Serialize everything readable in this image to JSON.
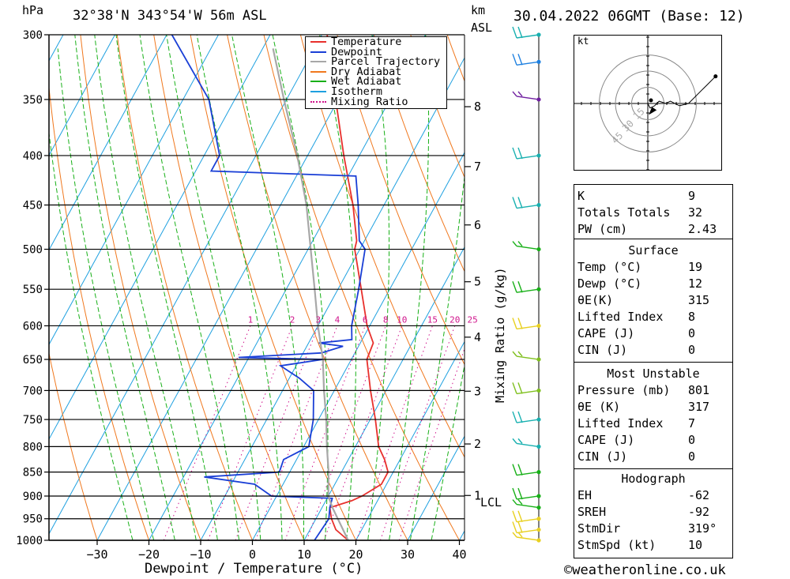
{
  "header": {
    "pressure_unit": "hPa",
    "location": "32°38'N 343°54'W 56m ASL",
    "km_label": "km",
    "asl_label": "ASL",
    "datetime": "30.04.2022 06GMT (Base: 12)"
  },
  "colors": {
    "temperature": "#e8302c",
    "dewpoint": "#1a3fd6",
    "parcel": "#a8a8a8",
    "dry_adiabat": "#f0781e",
    "wet_adiabat": "#18b018",
    "isotherm": "#1ea0e0",
    "mixing_ratio": "#d0148c"
  },
  "chart_data": {
    "type": "line",
    "title": "32°38'N 343°54'W 56m ASL",
    "xlabel": "Dewpoint / Temperature (°C)",
    "ylabel": "hPa",
    "y_scale": "log-pressure",
    "xlim": [
      -40,
      40
    ],
    "ylim": [
      1000,
      300
    ],
    "x_ticks": [
      "-30",
      "-20",
      "-10",
      "0",
      "10",
      "20",
      "30",
      "40"
    ],
    "pressure_ticks": [
      "300",
      "350",
      "400",
      "450",
      "500",
      "550",
      "600",
      "650",
      "700",
      "750",
      "800",
      "850",
      "900",
      "950",
      "1000"
    ],
    "height_ticks_km": [
      "1",
      "2",
      "3",
      "4",
      "5",
      "6",
      "7",
      "8"
    ],
    "lcl_label": "LCL",
    "mixing_ratio_label": "Mixing Ratio (g/kg)",
    "mixing_ratio_values": [
      "1",
      "2",
      "3",
      "4",
      "6",
      "8",
      "10",
      "15",
      "20",
      "25"
    ],
    "legend": [
      "Temperature",
      "Dewpoint",
      "Parcel Trajectory",
      "Dry Adiabat",
      "Wet Adiabat",
      "Isotherm",
      "Mixing Ratio"
    ],
    "legend_position": "top-right",
    "series": [
      {
        "name": "Temperature",
        "points": [
          [
            1000,
            18.5
          ],
          [
            975,
            15
          ],
          [
            950,
            13
          ],
          [
            925,
            11.5
          ],
          [
            910,
            15
          ],
          [
            900,
            16.5
          ],
          [
            875,
            19
          ],
          [
            850,
            19
          ],
          [
            825,
            17
          ],
          [
            800,
            14.5
          ],
          [
            750,
            11
          ],
          [
            700,
            7
          ],
          [
            650,
            3
          ],
          [
            625,
            2.5
          ],
          [
            600,
            -0.5
          ],
          [
            550,
            -5.5
          ],
          [
            500,
            -11
          ],
          [
            490,
            -11.5
          ],
          [
            450,
            -16
          ],
          [
            400,
            -23
          ],
          [
            350,
            -30.5
          ],
          [
            300,
            -39
          ]
        ]
      },
      {
        "name": "Dewpoint",
        "points": [
          [
            1000,
            12
          ],
          [
            950,
            12.5
          ],
          [
            925,
            11.5
          ],
          [
            905,
            11
          ],
          [
            900,
            -1
          ],
          [
            875,
            -5.5
          ],
          [
            860,
            -16
          ],
          [
            850,
            -2
          ],
          [
            825,
            -2.5
          ],
          [
            800,
            1
          ],
          [
            750,
            -1
          ],
          [
            700,
            -4
          ],
          [
            680,
            -8
          ],
          [
            660,
            -13
          ],
          [
            650,
            -5.5
          ],
          [
            647,
            -22
          ],
          [
            640,
            -6.5
          ],
          [
            630,
            -3
          ],
          [
            625,
            -8
          ],
          [
            620,
            -2
          ],
          [
            600,
            -3.5
          ],
          [
            550,
            -6
          ],
          [
            500,
            -9
          ],
          [
            490,
            -11
          ],
          [
            450,
            -15
          ],
          [
            420,
            -18.5
          ],
          [
            415,
            -47
          ],
          [
            400,
            -47
          ],
          [
            350,
            -55
          ],
          [
            300,
            -69
          ]
        ]
      },
      {
        "name": "Parcel Trajectory",
        "points": [
          [
            1000,
            18.5
          ],
          [
            925,
            12
          ],
          [
            900,
            10
          ],
          [
            850,
            7.5
          ],
          [
            800,
            4.5
          ],
          [
            750,
            1.5
          ],
          [
            700,
            -2
          ],
          [
            650,
            -5.5
          ],
          [
            600,
            -10
          ],
          [
            550,
            -14.5
          ],
          [
            500,
            -19.5
          ],
          [
            450,
            -25
          ],
          [
            400,
            -32
          ],
          [
            350,
            -40.5
          ],
          [
            310,
            -48
          ]
        ]
      }
    ]
  },
  "winds": [
    {
      "p": 1000,
      "color": "#e8d020"
    },
    {
      "p": 975,
      "color": "#e8d020"
    },
    {
      "p": 950,
      "color": "#e8d020"
    },
    {
      "p": 925,
      "color": "#18b018"
    },
    {
      "p": 900,
      "color": "#18b018"
    },
    {
      "p": 850,
      "color": "#18b018"
    },
    {
      "p": 800,
      "color": "#18b0b0"
    },
    {
      "p": 750,
      "color": "#18b0b0"
    },
    {
      "p": 700,
      "color": "#80c020"
    },
    {
      "p": 650,
      "color": "#80c020"
    },
    {
      "p": 600,
      "color": "#e8d020"
    },
    {
      "p": 550,
      "color": "#18b018"
    },
    {
      "p": 500,
      "color": "#18b018"
    },
    {
      "p": 450,
      "color": "#18b0b0"
    },
    {
      "p": 400,
      "color": "#18b0b0"
    },
    {
      "p": 350,
      "color": "#7020a0"
    },
    {
      "p": 320,
      "color": "#1e80e0"
    },
    {
      "p": 300,
      "color": "#18b0b0"
    }
  ],
  "hodograph": {
    "unit": "kt",
    "rings": [
      "15",
      "30",
      "45"
    ],
    "trace": [
      [
        0,
        0
      ],
      [
        1,
        -2
      ],
      [
        3,
        -1
      ],
      [
        5,
        1
      ],
      [
        8,
        0
      ],
      [
        10,
        1
      ],
      [
        14,
        -1
      ],
      [
        18,
        0
      ],
      [
        24,
        6
      ],
      [
        26,
        8
      ],
      [
        30,
        12
      ]
    ],
    "storm_motion": [
      4,
      -4
    ]
  },
  "indices": {
    "k_label": "K",
    "k": "9",
    "tt_label": "Totals Totals",
    "tt": "32",
    "pw_label": "PW (cm)",
    "pw": "2.43"
  },
  "surface": {
    "title": "Surface",
    "temp_label": "Temp (°C)",
    "temp": "19",
    "dewp_label": "Dewp (°C)",
    "dewp": "12",
    "theta_label": "θE(K)",
    "theta": "315",
    "li_label": "Lifted Index",
    "li": "8",
    "cape_label": "CAPE (J)",
    "cape": "0",
    "cin_label": "CIN (J)",
    "cin": "0"
  },
  "most_unstable": {
    "title": "Most Unstable",
    "pressure_label": "Pressure (mb)",
    "pressure": "801",
    "theta_label": "θE (K)",
    "theta": "317",
    "li_label": "Lifted Index",
    "li": "7",
    "cape_label": "CAPE (J)",
    "cape": "0",
    "cin_label": "CIN (J)",
    "cin": "0"
  },
  "hodograph_table": {
    "title": "Hodograph",
    "eh_label": "EH",
    "eh": "-62",
    "sreh_label": "SREH",
    "sreh": "-92",
    "stmdir_label": "StmDir",
    "stmdir": "319°",
    "stmspd_label": "StmSpd (kt)",
    "stmspd": "10"
  },
  "footer": {
    "copyright": "©weatheronline.co.uk"
  }
}
